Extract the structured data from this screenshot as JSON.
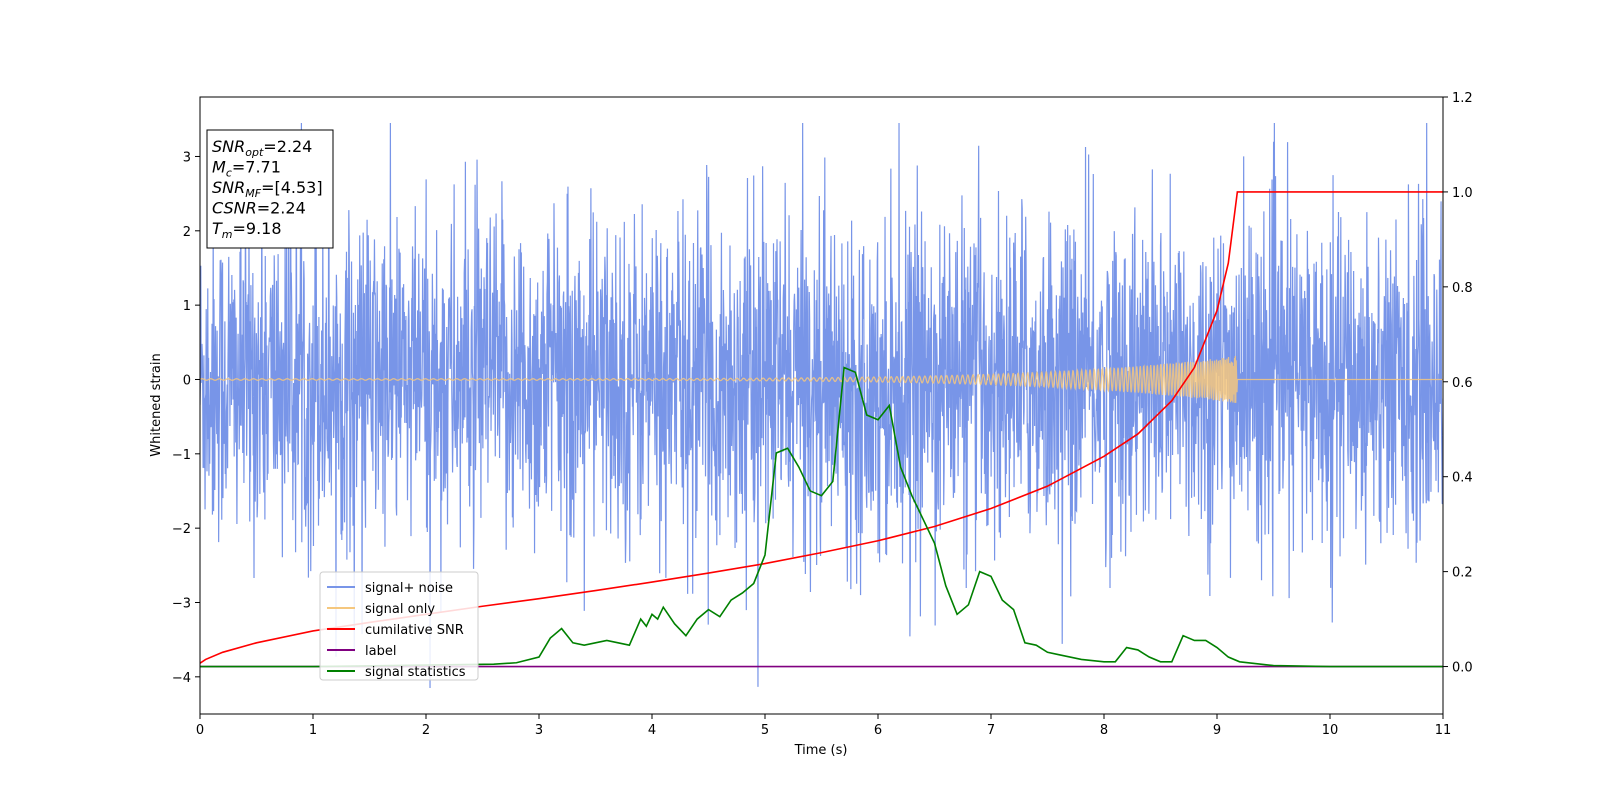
{
  "chart_data": {
    "type": "line",
    "xlabel": "Time (s)",
    "ylabel_left": "Whitened strain",
    "ylabel_right": "",
    "xlim": [
      0,
      11
    ],
    "ylim_left": [
      -4.5,
      3.8
    ],
    "ylim_right": [
      -0.1,
      1.2
    ],
    "x_ticks": [
      0,
      1,
      2,
      3,
      4,
      5,
      6,
      7,
      8,
      9,
      10,
      11
    ],
    "y_ticks_left": [
      -4,
      -3,
      -2,
      -1,
      0,
      1,
      2,
      3
    ],
    "y_ticks_right": [
      0.0,
      0.2,
      0.4,
      0.6,
      0.8,
      1.0,
      1.2
    ],
    "grid": false,
    "legend_position": "lower-left",
    "info_box": {
      "position": "top-left",
      "lines": [
        {
          "sym": "SNR",
          "sub": "opt",
          "value": "=2.24"
        },
        {
          "sym": "M",
          "sub": "c",
          "value": "=7.71"
        },
        {
          "sym": "SNR",
          "sub": "MF",
          "value": "=[4.53]"
        },
        {
          "sym": "CSNR",
          "sub": "",
          "value": "=2.24"
        },
        {
          "sym": "T",
          "sub": "m",
          "value": "=9.18"
        }
      ]
    },
    "series": [
      {
        "name": "signal+ noise",
        "axis": "left",
        "color": "#7895e8",
        "kind": "noise",
        "x_range": [
          0,
          11
        ],
        "typical_amplitude": 2.0,
        "peak_max": 3.45,
        "peak_min": -4.15
      },
      {
        "name": "signal only",
        "axis": "left",
        "color": "#f5c77e",
        "kind": "chirp",
        "x_range": [
          0,
          9.18
        ],
        "amplitude_start": 0.01,
        "amplitude_end": 0.32
      },
      {
        "name": "cumilative SNR",
        "axis": "right",
        "color": "#ff0000",
        "x": [
          0,
          0.05,
          0.2,
          0.5,
          1,
          1.5,
          2,
          2.5,
          3,
          3.5,
          4,
          4.5,
          5,
          5.5,
          6,
          6.5,
          7,
          7.5,
          8,
          8.3,
          8.6,
          8.8,
          9.0,
          9.1,
          9.18,
          11
        ],
        "values": [
          0.007,
          0.015,
          0.03,
          0.05,
          0.075,
          0.093,
          0.11,
          0.127,
          0.143,
          0.16,
          0.178,
          0.197,
          0.217,
          0.24,
          0.265,
          0.295,
          0.333,
          0.38,
          0.443,
          0.49,
          0.56,
          0.63,
          0.75,
          0.85,
          1.0,
          1.0
        ]
      },
      {
        "name": "label",
        "axis": "right",
        "color": "#800080",
        "x": [
          0,
          11
        ],
        "values": [
          0.0,
          0.0
        ]
      },
      {
        "name": "signal statistics",
        "axis": "right",
        "color": "#008000",
        "x": [
          0,
          1,
          2,
          2.6,
          2.8,
          3.0,
          3.1,
          3.2,
          3.3,
          3.4,
          3.5,
          3.6,
          3.7,
          3.8,
          3.9,
          3.95,
          4.0,
          4.05,
          4.1,
          4.2,
          4.3,
          4.4,
          4.5,
          4.6,
          4.7,
          4.8,
          4.9,
          5.0,
          5.1,
          5.2,
          5.3,
          5.4,
          5.5,
          5.6,
          5.7,
          5.8,
          5.9,
          6.0,
          6.1,
          6.2,
          6.3,
          6.4,
          6.5,
          6.6,
          6.7,
          6.8,
          6.9,
          7.0,
          7.1,
          7.2,
          7.3,
          7.4,
          7.5,
          7.6,
          7.8,
          8.0,
          8.1,
          8.2,
          8.3,
          8.4,
          8.5,
          8.6,
          8.7,
          8.8,
          8.9,
          9.0,
          9.1,
          9.2,
          9.5,
          10,
          11
        ],
        "values": [
          0.0,
          0.0,
          0.003,
          0.005,
          0.008,
          0.02,
          0.06,
          0.08,
          0.05,
          0.045,
          0.05,
          0.055,
          0.05,
          0.045,
          0.1,
          0.085,
          0.11,
          0.1,
          0.125,
          0.09,
          0.065,
          0.1,
          0.12,
          0.105,
          0.14,
          0.155,
          0.175,
          0.235,
          0.45,
          0.46,
          0.42,
          0.37,
          0.36,
          0.39,
          0.63,
          0.62,
          0.53,
          0.52,
          0.55,
          0.42,
          0.36,
          0.31,
          0.26,
          0.17,
          0.11,
          0.13,
          0.2,
          0.19,
          0.14,
          0.12,
          0.05,
          0.045,
          0.03,
          0.025,
          0.015,
          0.01,
          0.01,
          0.04,
          0.035,
          0.02,
          0.01,
          0.01,
          0.065,
          0.055,
          0.055,
          0.04,
          0.02,
          0.01,
          0.002,
          0.0,
          0.0
        ]
      }
    ]
  }
}
